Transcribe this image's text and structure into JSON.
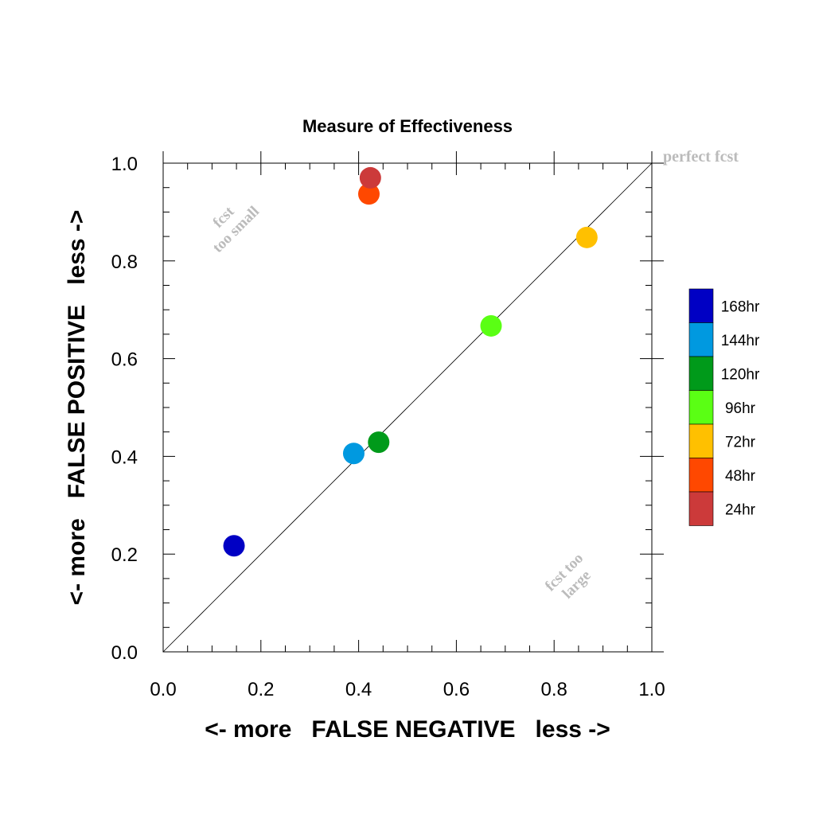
{
  "chart_data": {
    "type": "scatter",
    "title": "Measure of Effectiveness",
    "xlabel": "<- more   FALSE NEGATIVE   less ->",
    "ylabel": "<- more   FALSE POSITIVE   less ->",
    "xlim": [
      0,
      1
    ],
    "ylim": [
      0,
      1
    ],
    "xticks": [
      "0.0",
      "0.2",
      "0.4",
      "0.6",
      "0.8",
      "1.0"
    ],
    "yticks": [
      "0.0",
      "0.2",
      "0.4",
      "0.6",
      "0.8",
      "1.0"
    ],
    "diagonal_line": true,
    "legend_position": "right",
    "annotations": {
      "perfect": "perfect fcst",
      "too_small_1": "fcst",
      "too_small_2": "too small",
      "too_large_1": "fcst too",
      "too_large_2": "large"
    },
    "series": [
      {
        "name": "168hr",
        "color": "#0000c4",
        "x": 0.145,
        "y": 0.217
      },
      {
        "name": "144hr",
        "color": "#0099e0",
        "x": 0.39,
        "y": 0.406
      },
      {
        "name": "120hr",
        "color": "#009a1a",
        "x": 0.441,
        "y": 0.429
      },
      {
        "name": "96hr",
        "color": "#5aff14",
        "x": 0.671,
        "y": 0.667
      },
      {
        "name": "72hr",
        "color": "#ffc000",
        "x": 0.867,
        "y": 0.848
      },
      {
        "name": "48hr",
        "color": "#ff4800",
        "x": 0.421,
        "y": 0.937
      },
      {
        "name": "24hr",
        "color": "#cc3a3a",
        "x": 0.424,
        "y": 0.97
      }
    ]
  }
}
